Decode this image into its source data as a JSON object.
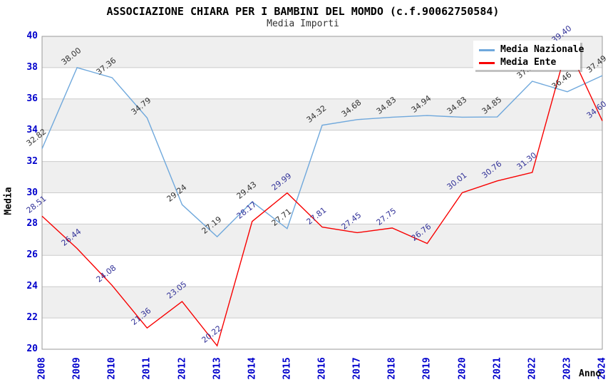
{
  "title": "ASSOCIAZIONE CHIARA PER I BAMBINI DEL MOMDO (c.f.90062750584)",
  "subtitle": "Media Importi",
  "legend": {
    "items": [
      {
        "label": "Media Nazionale",
        "color": "#6FA8DC"
      },
      {
        "label": "Media Ente",
        "color": "#F80000"
      }
    ]
  },
  "chart_data": {
    "type": "line",
    "title": "ASSOCIAZIONE CHIARA PER I BAMBINI DEL MOMDO (c.f.90062750584)",
    "subtitle": "Media Importi",
    "xlabel": "Anno",
    "ylabel": "Media",
    "x": [
      "2008",
      "2009",
      "2010",
      "2011",
      "2012",
      "2013",
      "2014",
      "2015",
      "2016",
      "2017",
      "2018",
      "2019",
      "2020",
      "2021",
      "2022",
      "2023",
      "2024"
    ],
    "series": [
      {
        "name": "Media Nazionale",
        "color": "#6FA8DC",
        "label_color": "#333333",
        "values": [
          32.82,
          38.0,
          37.36,
          34.79,
          29.24,
          27.19,
          29.43,
          27.71,
          34.32,
          34.68,
          34.83,
          34.94,
          34.83,
          34.85,
          37.13,
          36.46,
          37.49
        ]
      },
      {
        "name": "Media Ente",
        "color": "#F80000",
        "label_color": "#333399",
        "values": [
          28.51,
          26.44,
          24.08,
          21.36,
          23.05,
          20.22,
          28.17,
          29.99,
          27.81,
          27.45,
          27.75,
          26.76,
          30.01,
          30.76,
          31.3,
          39.4,
          34.6
        ]
      }
    ],
    "ylim": [
      20,
      40
    ],
    "ytick_step": 2,
    "grid": true,
    "band_colors": [
      "#efefef",
      "#ffffff"
    ],
    "gridline_color": "#cccccc",
    "plot_border_color": "#999999",
    "tick_label_color": "#0000cc",
    "legend_position": "top-right",
    "note": "value label of Media Nazionale 2022 is partially hidden behind the legend box"
  }
}
